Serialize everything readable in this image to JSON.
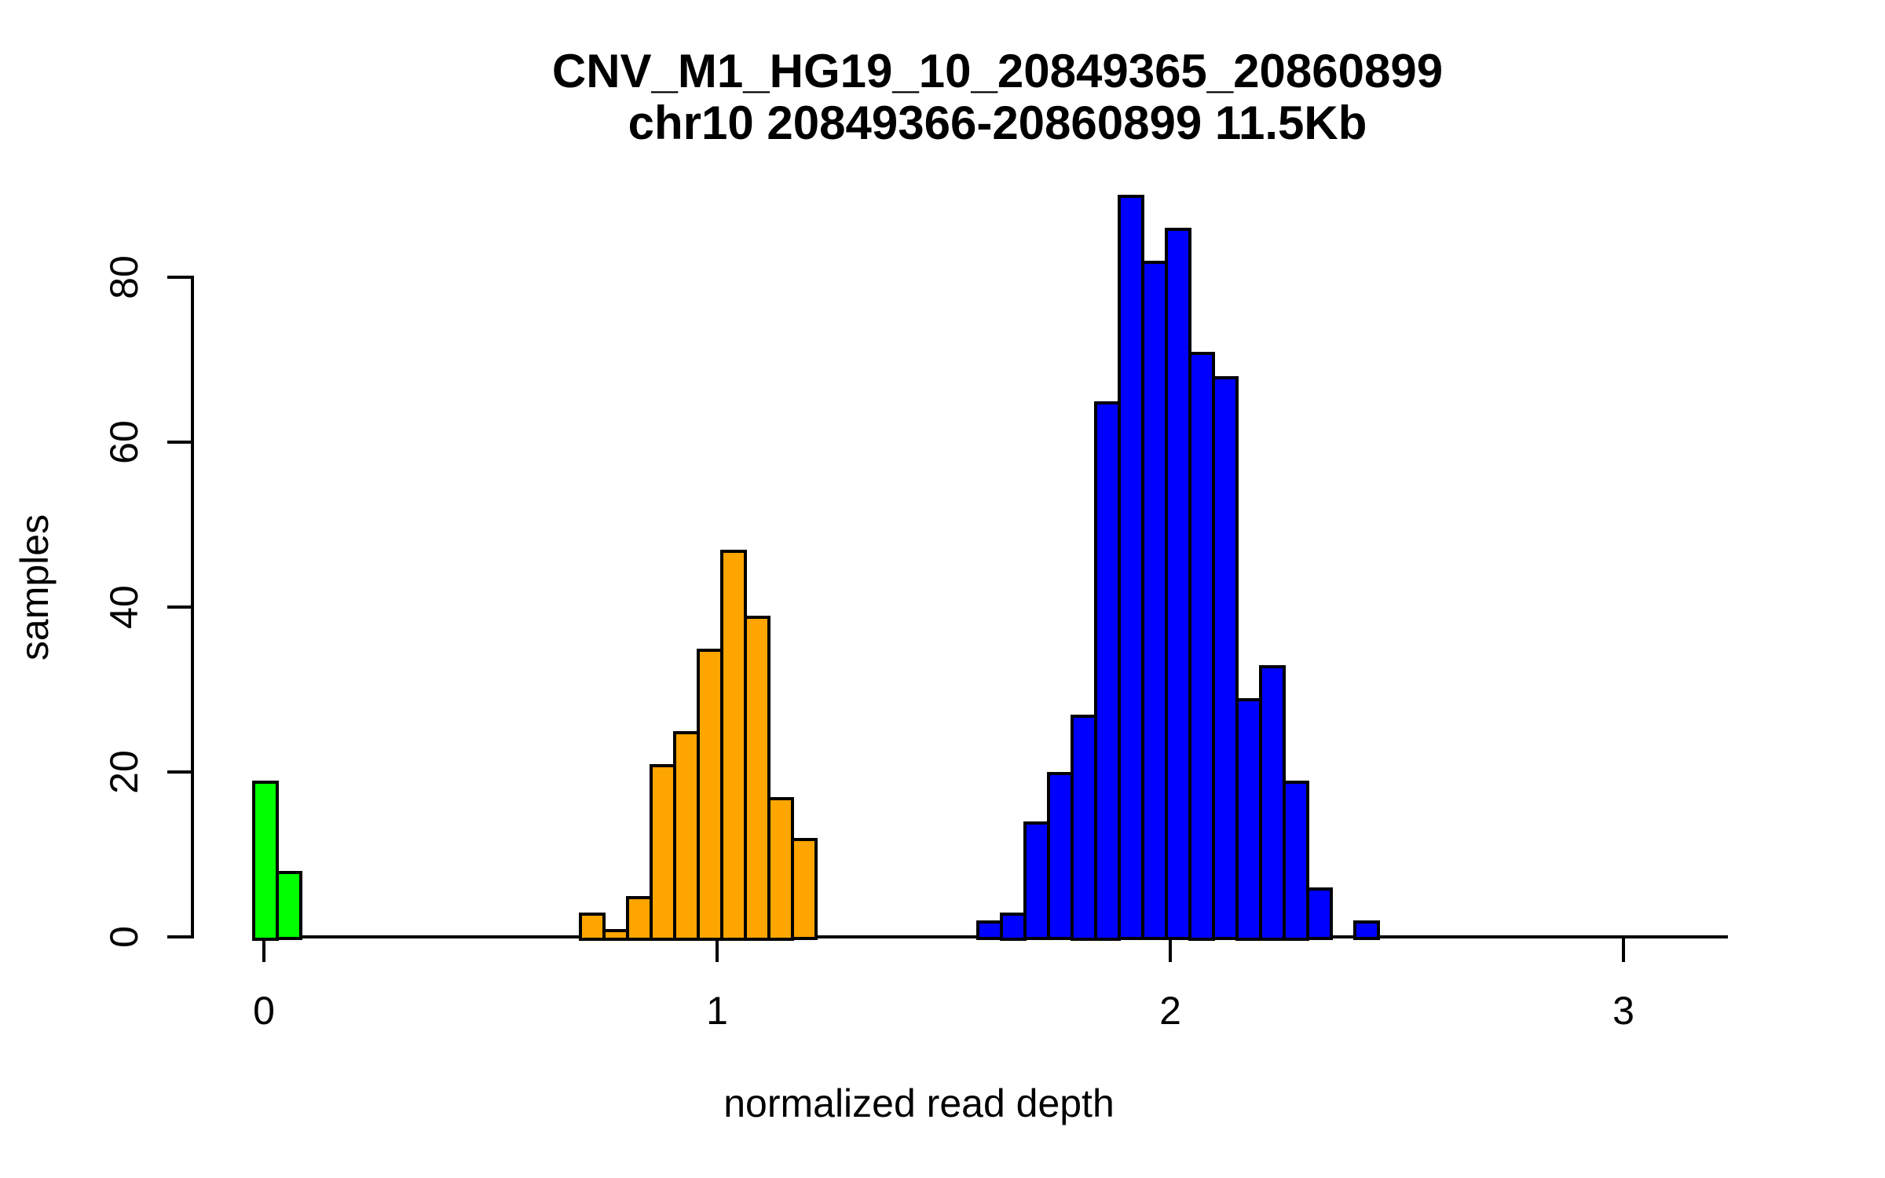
{
  "chart_data": {
    "type": "bar",
    "title": "CNV_M1_HG19_10_20849365_20860899",
    "subtitle": "chr10 20849366-20860899 11.5Kb",
    "xlabel": "normalized read depth",
    "ylabel": "samples",
    "xlim": [
      0,
      3.23
    ],
    "ylim": [
      0,
      90
    ],
    "grid": false,
    "legend": "none",
    "bar_border_color": "#000000",
    "x_ticks": [
      {
        "value": 0,
        "label": "0"
      },
      {
        "value": 1,
        "label": "1"
      },
      {
        "value": 2,
        "label": "2"
      },
      {
        "value": 3,
        "label": "3"
      }
    ],
    "y_ticks": [
      {
        "value": 0,
        "label": "0"
      },
      {
        "value": 20,
        "label": "20"
      },
      {
        "value": 40,
        "label": "40"
      },
      {
        "value": 60,
        "label": "60"
      },
      {
        "value": 80,
        "label": "80"
      }
    ],
    "series": [
      {
        "name": "green-cluster-near-0",
        "color": "#00FF00",
        "bin_start": -0.026,
        "bin_width": 0.052,
        "counts": [
          19,
          8
        ]
      },
      {
        "name": "orange-cluster-near-1",
        "color": "#FFA500",
        "bin_start": 0.695,
        "bin_width": 0.052,
        "counts": [
          3,
          1,
          5,
          21,
          25,
          35,
          47,
          39,
          17,
          12
        ]
      },
      {
        "name": "blue-cluster-near-2",
        "color": "#0000FF",
        "bin_start": 1.572,
        "bin_width": 0.052,
        "counts": [
          2,
          3,
          14,
          20,
          27,
          65,
          90,
          82,
          86,
          71,
          68,
          29,
          33,
          19,
          6,
          0,
          2
        ]
      }
    ]
  }
}
